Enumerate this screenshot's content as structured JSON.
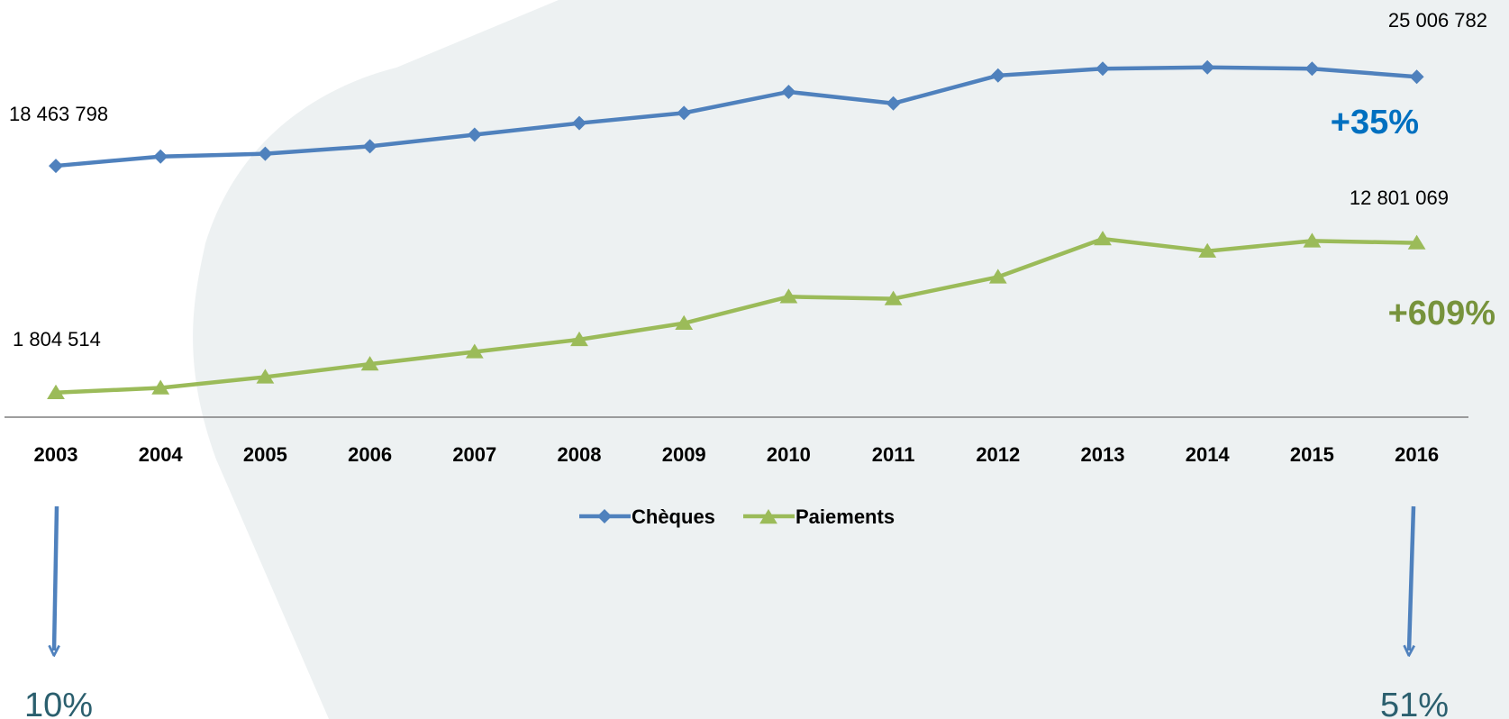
{
  "colors": {
    "cheques": "#4f81bd",
    "paiements": "#9bbb59",
    "cheques_growth": "#0070c0",
    "paiements_growth": "#77933c",
    "backdrop": "#edf1f2",
    "share_text": "#2b5f6e"
  },
  "chart_data": {
    "type": "line",
    "x": [
      "2003",
      "2004",
      "2005",
      "2006",
      "2007",
      "2008",
      "2009",
      "2010",
      "2011",
      "2012",
      "2013",
      "2014",
      "2015",
      "2016"
    ],
    "ylim": [
      0,
      28000000
    ],
    "grid": false,
    "legend_position": "bottom-center",
    "series": [
      {
        "name": "Chèques",
        "marker": "diamond",
        "values": [
          18463798,
          19150000,
          19350000,
          19900000,
          20750000,
          21600000,
          22350000,
          23900000,
          23050000,
          25100000,
          25600000,
          25700000,
          25600000,
          25006782
        ]
      },
      {
        "name": "Paiements",
        "marker": "triangle",
        "values": [
          1804514,
          2150000,
          2950000,
          3900000,
          4800000,
          5700000,
          6900000,
          8850000,
          8700000,
          10300000,
          13100000,
          12200000,
          12950000,
          12801069
        ]
      }
    ],
    "data_labels": {
      "cheques_start": "18 463 798",
      "cheques_end": "25 006 782",
      "paiements_start": "1 804 514",
      "paiements_end": "12 801 069"
    },
    "annotations": {
      "cheques_growth": "+35%",
      "paiements_growth": "+609%",
      "share_2003": "10%",
      "share_2016": "51%"
    }
  }
}
